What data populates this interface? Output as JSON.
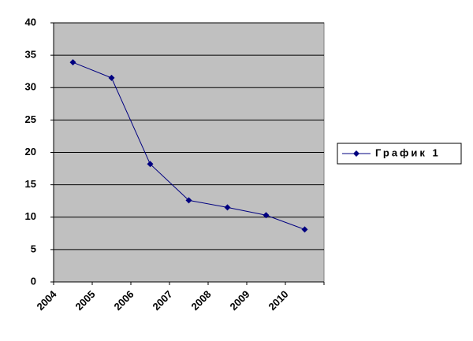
{
  "chart_data": {
    "type": "line",
    "categories": [
      "2004",
      "2005",
      "2006",
      "2007",
      "2008",
      "2009",
      "2010"
    ],
    "series": [
      {
        "name": "График 1",
        "color": "#000080",
        "values": [
          33.9,
          31.5,
          18.2,
          12.6,
          11.5,
          10.3,
          8.1
        ]
      }
    ],
    "ylim": [
      0,
      40
    ],
    "yticks": [
      0,
      5,
      10,
      15,
      20,
      25,
      30,
      35,
      40
    ],
    "grid": true,
    "legend": "right"
  }
}
